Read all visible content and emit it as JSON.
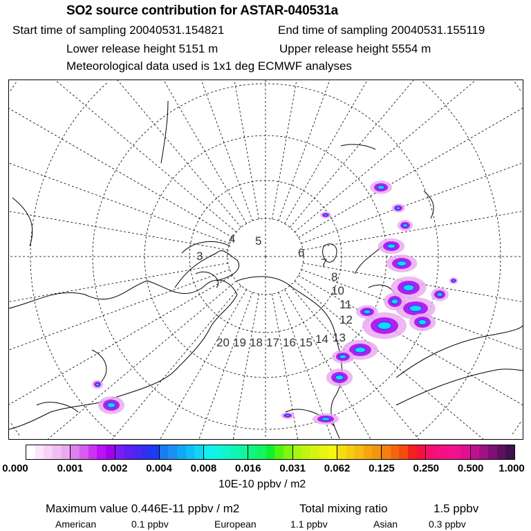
{
  "header": {
    "title": "SO2 source contribution for ASTAR-040531a",
    "start_label": "Start time of sampling 20040531.154821",
    "end_label": "End time of sampling 20040531.155119",
    "lower_label": "Lower release height 5151 m",
    "upper_label": "Upper release height 5554 m",
    "met_label": "Meteorological data used is 1x1 deg ECMWF analyses"
  },
  "map": {
    "trajectory_labels": [
      "3",
      "4",
      "5",
      "6",
      "7",
      "8",
      "10",
      "11",
      "12",
      "13",
      "14",
      "15",
      "16",
      "17",
      "18",
      "19",
      "20"
    ]
  },
  "colorbar": {
    "ticks": [
      "0.000",
      "0.001",
      "0.002",
      "0.004",
      "0.008",
      "0.016",
      "0.031",
      "0.062",
      "0.125",
      "0.250",
      "0.500",
      "1.000"
    ],
    "units": "10E-10 ppbv / m2",
    "colors": [
      [
        "#ffffff",
        "#fbe6fb",
        "#f6d2f6",
        "#f1bdf2",
        "#ebaaf0"
      ],
      [
        "#e07ff0",
        "#d65cf0",
        "#cc33f5",
        "#bb11f5",
        "#a400f0"
      ],
      [
        "#7a1cf5",
        "#5f1ff5",
        "#4a26f5",
        "#3030f0",
        "#1a3cf5"
      ],
      [
        "#1a7cf5",
        "#1a8ff5",
        "#10a8f5",
        "#10bff5",
        "#10d5f5"
      ],
      [
        "#10f0f0",
        "#10f5e0",
        "#10f5cc",
        "#10f5b5",
        "#10f59f"
      ],
      [
        "#10f580",
        "#10f560",
        "#10f030",
        "#50f510",
        "#80f510"
      ],
      [
        "#a8f510",
        "#c0f510",
        "#d5f510",
        "#e8f510",
        "#f5f510"
      ],
      [
        "#f5dd10",
        "#f5cc10",
        "#f5bb10",
        "#f5a510",
        "#f59510"
      ],
      [
        "#f57f10",
        "#f56510",
        "#f54a10",
        "#f52020",
        "#f51040"
      ],
      [
        "#f51070",
        "#f51080",
        "#f5108a",
        "#f01090",
        "#e01095"
      ],
      [
        "#c01090",
        "#a01085",
        "#801075",
        "#601060",
        "#401050"
      ]
    ]
  },
  "footer": {
    "max_label": "Maximum value  0.446E-11 ppbv / m2",
    "total_label": "Total mixing ratio",
    "total_value": "1.5 ppbv",
    "american_label": "American",
    "american_value": "0.1 ppbv",
    "european_label": "European",
    "european_value": "1.1 ppbv",
    "asian_label": "Asian",
    "asian_value": "0.3 ppbv"
  }
}
